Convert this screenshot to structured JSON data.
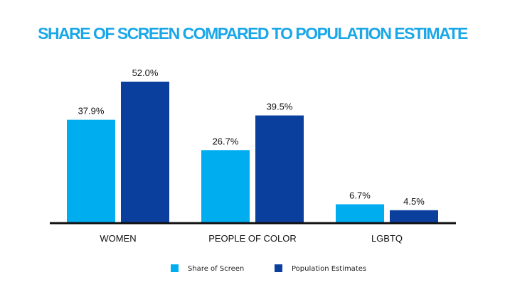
{
  "chart_data": {
    "type": "bar",
    "title": "SHARE OF SCREEN COMPARED TO POPULATION ESTIMATE",
    "categories": [
      "WOMEN",
      "PEOPLE OF COLOR",
      "LGBTQ"
    ],
    "series": [
      {
        "name": "Share of Screen",
        "values": [
          37.9,
          26.7,
          6.7
        ],
        "labels": [
          "37.9%",
          "26.7%",
          "6.7%"
        ],
        "color": "#00adef"
      },
      {
        "name": "Population Estimates",
        "values": [
          52.0,
          39.5,
          4.5
        ],
        "labels": [
          "52.0%",
          "39.5%",
          "4.5%"
        ],
        "color": "#0a3f9e"
      }
    ],
    "xlabel": "",
    "ylabel": "",
    "ylim": [
      0,
      55
    ],
    "grid": false,
    "legend": "bottom-center"
  }
}
